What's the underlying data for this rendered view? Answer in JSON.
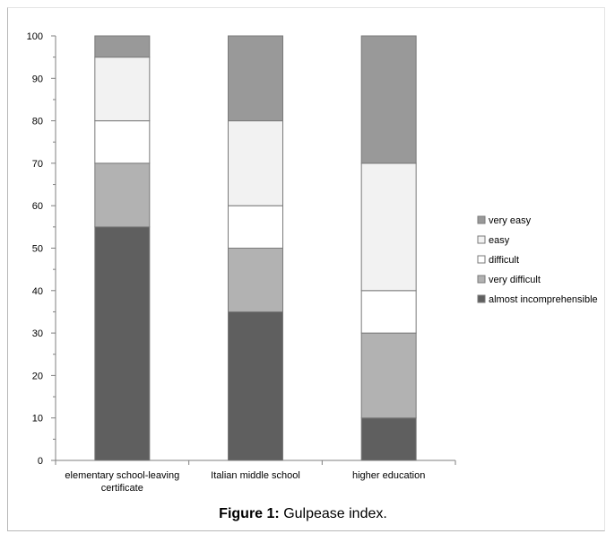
{
  "chart_data": {
    "type": "bar",
    "stacked": true,
    "categories": [
      "elementary school-leaving certificate",
      "Italian middle school",
      "higher education"
    ],
    "series": [
      {
        "name": "almost incomprehensible",
        "values": [
          55,
          35,
          10
        ],
        "color": "#5f5f5f"
      },
      {
        "name": "very difficult",
        "values": [
          15,
          15,
          20
        ],
        "color": "#b2b2b2"
      },
      {
        "name": "difficult",
        "values": [
          10,
          10,
          10
        ],
        "color": "#ffffff"
      },
      {
        "name": "easy",
        "values": [
          15,
          20,
          30
        ],
        "color": "#f2f2f2"
      },
      {
        "name": "very easy",
        "values": [
          5,
          20,
          30
        ],
        "color": "#999999"
      }
    ],
    "ylim": [
      0,
      100
    ],
    "yticks": [
      0,
      10,
      20,
      30,
      40,
      50,
      60,
      70,
      80,
      90,
      100
    ],
    "legend_position": "right",
    "grid": false
  },
  "caption": {
    "label": "Figure 1:",
    "text": "Gulpease index."
  }
}
